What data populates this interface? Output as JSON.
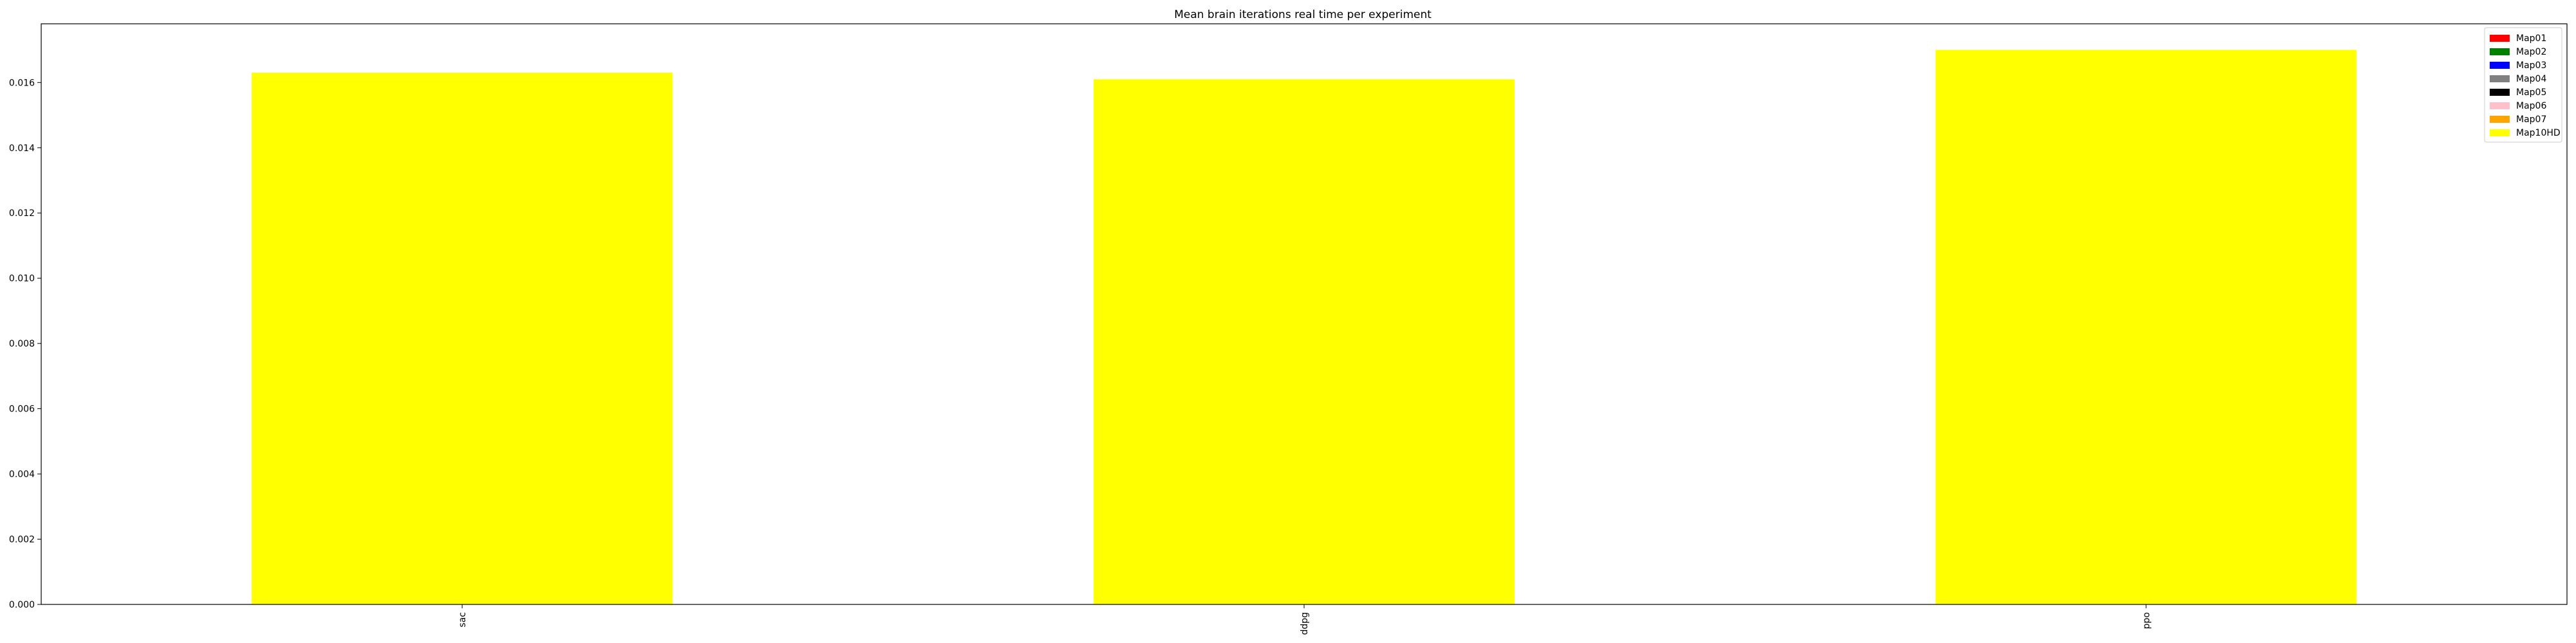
{
  "chart_data": {
    "type": "bar",
    "title": "Mean brain iterations real time per experiment",
    "xlabel": "",
    "ylabel": "",
    "categories": [
      "sac",
      "ddpg",
      "ppo"
    ],
    "series": [
      {
        "name": "Map01",
        "color": "#ff0000",
        "values": [
          null,
          null,
          null
        ]
      },
      {
        "name": "Map02",
        "color": "#008000",
        "values": [
          null,
          null,
          null
        ]
      },
      {
        "name": "Map03",
        "color": "#0000ff",
        "values": [
          null,
          null,
          null
        ]
      },
      {
        "name": "Map04",
        "color": "#808080",
        "values": [
          null,
          null,
          null
        ]
      },
      {
        "name": "Map05",
        "color": "#000000",
        "values": [
          null,
          null,
          null
        ]
      },
      {
        "name": "Map06",
        "color": "#ffc0cb",
        "values": [
          null,
          null,
          null
        ]
      },
      {
        "name": "Map07",
        "color": "#ffa500",
        "values": [
          null,
          null,
          null
        ]
      },
      {
        "name": "Map10HD",
        "color": "#ffff00",
        "values": [
          0.0163,
          0.0161,
          0.017
        ]
      }
    ],
    "ylim": [
      0,
      0.0178
    ],
    "yticks": [
      "0.000",
      "0.002",
      "0.004",
      "0.006",
      "0.008",
      "0.010",
      "0.012",
      "0.014",
      "0.016"
    ],
    "legend_position": "top-right",
    "grid": false
  }
}
